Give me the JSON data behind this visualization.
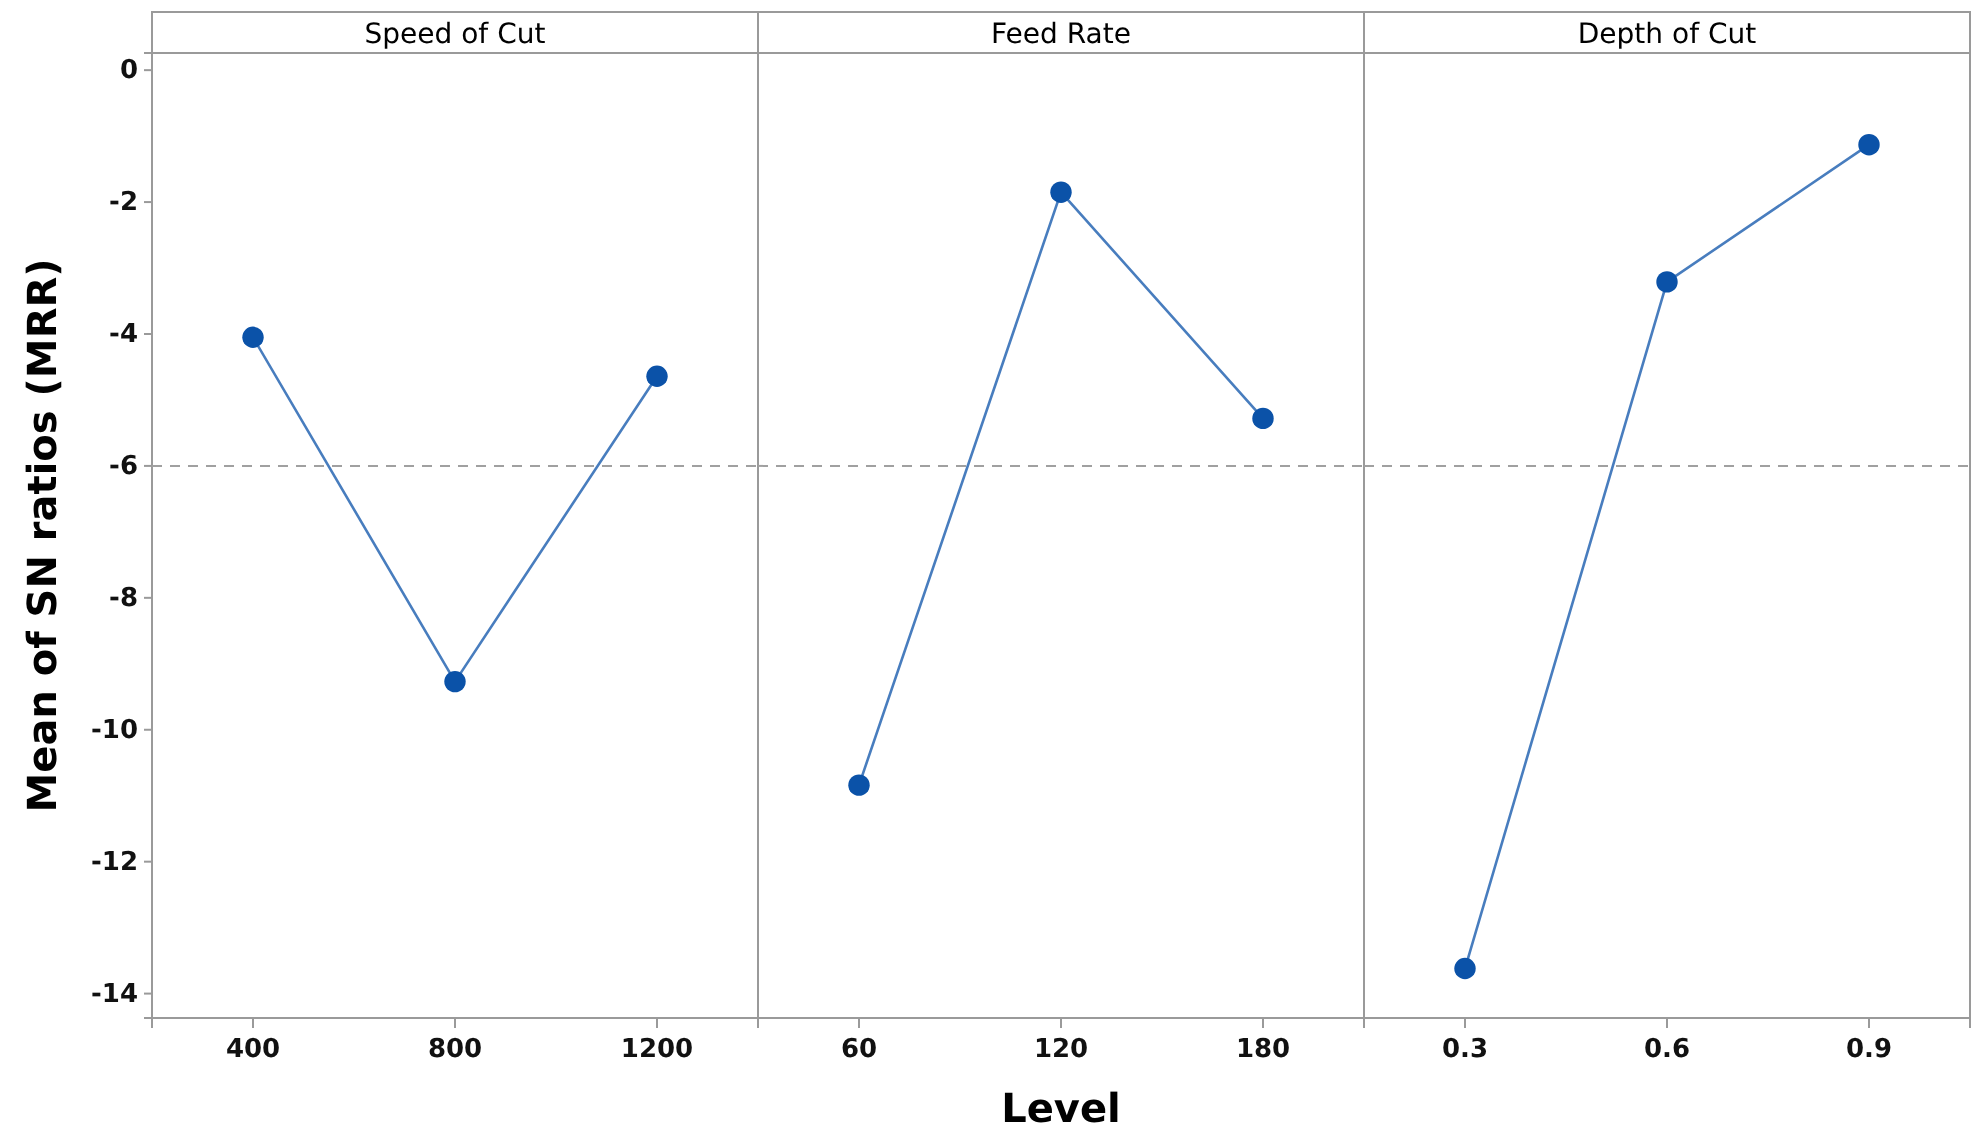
{
  "chart_data": [
    {
      "type": "line",
      "title": "Speed of Cut",
      "ylabel": "Mean of SN ratios (MRR)",
      "categories": [
        "400",
        "800",
        "1200"
      ],
      "series": [
        {
          "color": "#0b52a8",
          "values": [
            -4.05,
            -9.27,
            -4.64
          ]
        }
      ],
      "ylim": [
        -14.37,
        0.26
      ],
      "yticks": [
        0,
        -2,
        -4,
        -6,
        -8,
        -10,
        -12,
        -14
      ],
      "marker": "circle",
      "ref_lines": [
        {
          "axis": "y",
          "value": -6,
          "color": "#a0a0a0",
          "line_style": "dashed"
        }
      ]
    },
    {
      "type": "line",
      "title": "Feed Rate",
      "xlabel": "Level",
      "categories": [
        "60",
        "120",
        "180"
      ],
      "series": [
        {
          "color": "#0b52a8",
          "values": [
            -10.84,
            -1.85,
            -5.28
          ]
        }
      ],
      "ylim": [
        -14.37,
        0.26
      ],
      "yticks": [
        0,
        -2,
        -4,
        -6,
        -8,
        -10,
        -12,
        -14
      ],
      "tick_labels": "x",
      "marker": "circle",
      "ref_lines": [
        {
          "axis": "y",
          "value": -6,
          "color": "#a0a0a0",
          "line_style": "dashed"
        }
      ]
    },
    {
      "type": "line",
      "title": "Depth of Cut",
      "categories": [
        "0.3",
        "0.6",
        "0.9"
      ],
      "series": [
        {
          "color": "#0b52a8",
          "values": [
            -13.62,
            -3.21,
            -1.13
          ]
        }
      ],
      "ylim": [
        -14.37,
        0.26
      ],
      "yticks": [
        0,
        -2,
        -4,
        -6,
        -8,
        -10,
        -12,
        -14
      ],
      "tick_labels": "x",
      "marker": "circle",
      "ref_lines": [
        {
          "axis": "y",
          "value": -6,
          "color": "#a0a0a0",
          "line_style": "dashed"
        }
      ]
    }
  ]
}
